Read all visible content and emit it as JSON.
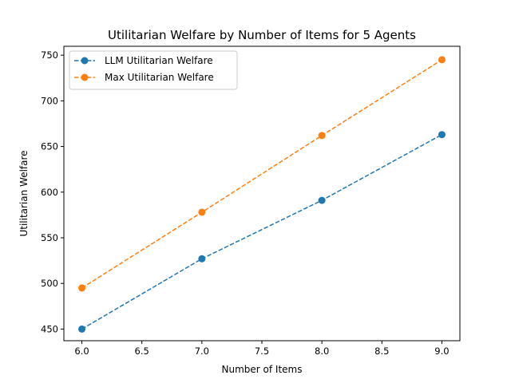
{
  "chart_data": {
    "type": "line",
    "title": "Utilitarian Welfare by Number of Items for 5 Agents",
    "xlabel": "Number of Items",
    "ylabel": "Utilitarian Welfare",
    "x": [
      6,
      7,
      8,
      9
    ],
    "xlim": [
      5.85,
      9.15
    ],
    "ylim": [
      437.25,
      759.75
    ],
    "xticks": [
      "6.0",
      "6.5",
      "7.0",
      "7.5",
      "8.0",
      "8.5",
      "9.0"
    ],
    "yticks": [
      "450",
      "500",
      "550",
      "600",
      "650",
      "700",
      "750"
    ],
    "grid": false,
    "legend_position": "top-left",
    "series": [
      {
        "name": "LLM Utilitarian Welfare",
        "values": [
          450,
          527,
          591,
          663
        ],
        "color": "#1f77b4",
        "line_style": "dashed",
        "marker": "circle"
      },
      {
        "name": "Max Utilitarian Welfare",
        "values": [
          495,
          578,
          662,
          745
        ],
        "color": "#ff7f0e",
        "line_style": "dashed",
        "marker": "circle"
      }
    ]
  }
}
